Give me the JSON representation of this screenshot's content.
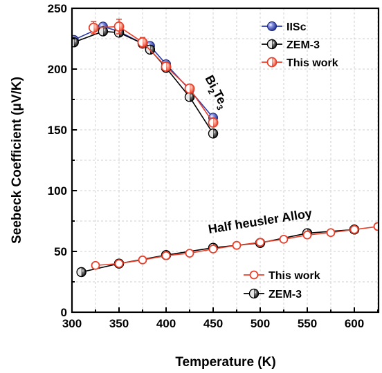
{
  "chart_data": {
    "type": "line",
    "xlabel": "Temperature (K)",
    "ylabel": "Seebeck Coefficient (μV/K)",
    "xlim": [
      300,
      625
    ],
    "ylim": [
      0,
      250
    ],
    "xticks": [
      "300",
      "350",
      "400",
      "450",
      "500",
      "550",
      "600"
    ],
    "yticks": [
      "0",
      "50",
      "100",
      "150",
      "200",
      "250"
    ],
    "grid": true,
    "annotations": {
      "bite": {
        "parts": [
          "Bi",
          "2",
          "Te",
          "3"
        ]
      },
      "half_heusler": "Half heusler Alloy"
    },
    "legends": [
      {
        "placement": "top-right",
        "entries": [
          "IISc",
          "ZEM-3",
          "This work"
        ]
      },
      {
        "placement": "bottom-right",
        "entries": [
          "This work",
          "ZEM-3"
        ]
      }
    ],
    "series": [
      {
        "name": "IISc",
        "group": "Bi2Te3",
        "color": "#2b3aa8",
        "marker": "filled-blue",
        "x": [
          302,
          333,
          350,
          375,
          383,
          400,
          425,
          450
        ],
        "y": [
          224,
          235,
          231,
          221,
          219,
          204,
          183,
          160
        ]
      },
      {
        "name": "ZEM-3",
        "group": "Bi2Te3",
        "color": "#000000",
        "marker": "half-black",
        "x": [
          302,
          333,
          350,
          375,
          383,
          400,
          425,
          450
        ],
        "y": [
          222,
          231,
          230,
          221,
          216,
          201,
          177,
          147
        ]
      },
      {
        "name": "This work",
        "group": "Bi2Te3",
        "color": "#e8402a",
        "marker": "half-red",
        "x": [
          323,
          350,
          375,
          400,
          425,
          450
        ],
        "y": [
          234,
          235,
          222,
          202,
          184,
          156
        ],
        "errors": [
          5,
          6,
          4,
          3,
          3,
          3
        ]
      },
      {
        "name": "This work",
        "group": "Half heusler Alloy",
        "color": "#e8402a",
        "marker": "open-red",
        "x": [
          325,
          350,
          375,
          400,
          425,
          450,
          475,
          500,
          525,
          550,
          575,
          600,
          625
        ],
        "y": [
          38.5,
          40,
          43,
          46.5,
          48.5,
          52,
          55,
          57.5,
          60,
          63.5,
          65.5,
          68,
          70.5
        ]
      },
      {
        "name": "ZEM-3",
        "group": "Half heusler Alloy",
        "color": "#000000",
        "marker": "half-black",
        "x": [
          310,
          350,
          400,
          450,
          500,
          550,
          600
        ],
        "y": [
          33,
          40,
          47,
          53,
          57,
          65,
          68
        ]
      }
    ],
    "colors": {
      "blue": "#2b3aa8",
      "red": "#e8402a",
      "black": "#000000",
      "grid": "#c8c8c8"
    }
  }
}
